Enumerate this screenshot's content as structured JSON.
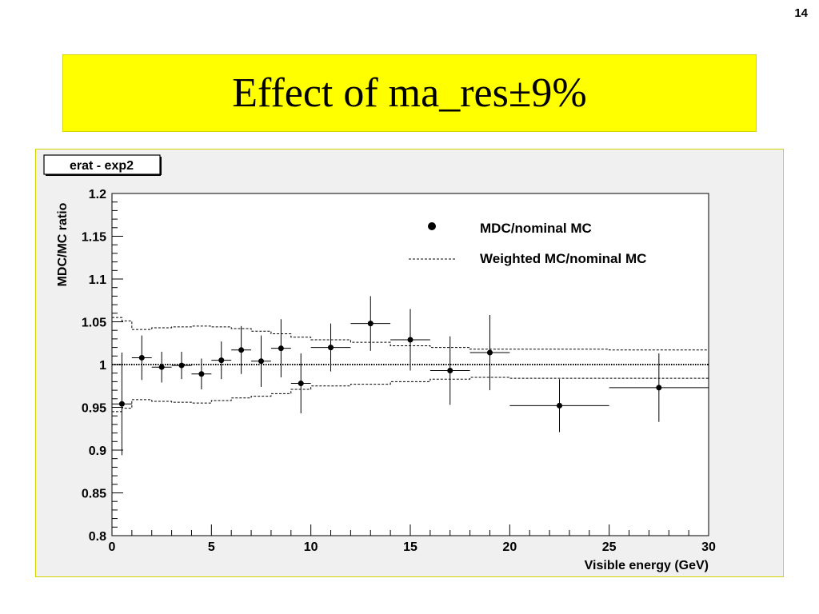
{
  "page": {
    "number": "14"
  },
  "slide": {
    "title": "Effect of ma_res±9%"
  },
  "chart_data": {
    "type": "scatter",
    "stats_box": "erat - exp2",
    "xlabel": "Visible energy (GeV)",
    "ylabel": "MDC/MC ratio",
    "xlim": [
      0,
      30
    ],
    "ylim": [
      0.8,
      1.2
    ],
    "xticks": [
      0,
      5,
      10,
      15,
      20,
      25,
      30
    ],
    "yticks": [
      0.8,
      0.85,
      0.9,
      0.95,
      1,
      1.05,
      1.1,
      1.15,
      1.2
    ],
    "ytick_labels": [
      "0.8",
      "0.85",
      "0.9",
      "0.95",
      "1",
      "1.05",
      "1.1",
      "1.15",
      "1.2"
    ],
    "reference_line": 1,
    "legend_position": "top-right",
    "series": [
      {
        "name": "MDC/nominal MC",
        "style": "points-with-errors",
        "points": [
          {
            "x": 0.5,
            "xlo": 0,
            "xhi": 1,
            "y": 0.954,
            "err": 0.06
          },
          {
            "x": 1.5,
            "xlo": 1,
            "xhi": 2,
            "y": 1.008,
            "err": 0.026
          },
          {
            "x": 2.5,
            "xlo": 2,
            "xhi": 3,
            "y": 0.997,
            "err": 0.018
          },
          {
            "x": 3.5,
            "xlo": 3,
            "xhi": 4,
            "y": 0.999,
            "err": 0.016
          },
          {
            "x": 4.5,
            "xlo": 4,
            "xhi": 5,
            "y": 0.989,
            "err": 0.018
          },
          {
            "x": 5.5,
            "xlo": 5,
            "xhi": 6,
            "y": 1.005,
            "err": 0.022
          },
          {
            "x": 6.5,
            "xlo": 6,
            "xhi": 7,
            "y": 1.017,
            "err": 0.028
          },
          {
            "x": 7.5,
            "xlo": 7,
            "xhi": 8,
            "y": 1.004,
            "err": 0.03
          },
          {
            "x": 8.5,
            "xlo": 8,
            "xhi": 9,
            "y": 1.019,
            "err": 0.034
          },
          {
            "x": 9.5,
            "xlo": 9,
            "xhi": 10,
            "y": 0.978,
            "err": 0.035
          },
          {
            "x": 11,
            "xlo": 10,
            "xhi": 12,
            "y": 1.02,
            "err": 0.028
          },
          {
            "x": 13,
            "xlo": 12,
            "xhi": 14,
            "y": 1.048,
            "err": 0.032
          },
          {
            "x": 15,
            "xlo": 14,
            "xhi": 16,
            "y": 1.029,
            "err": 0.036
          },
          {
            "x": 17,
            "xlo": 16,
            "xhi": 18,
            "y": 0.993,
            "err": 0.04
          },
          {
            "x": 19,
            "xlo": 18,
            "xhi": 20,
            "y": 1.014,
            "err": 0.044
          },
          {
            "x": 22.5,
            "xlo": 20,
            "xhi": 25,
            "y": 0.952,
            "err": 0.031
          },
          {
            "x": 27.5,
            "xlo": 25,
            "xhi": 30,
            "y": 0.973,
            "err": 0.04
          }
        ]
      },
      {
        "name": "Weighted MC/nominal MC",
        "style": "dashed-step-band",
        "bins": [
          0,
          0.5,
          1,
          2,
          3,
          4,
          5,
          6,
          7,
          8,
          9,
          10,
          12,
          14,
          16,
          18,
          20,
          25,
          30
        ],
        "upper": [
          1.055,
          1.051,
          1.041,
          1.043,
          1.044,
          1.045,
          1.044,
          1.042,
          1.039,
          1.036,
          1.032,
          1.029,
          1.026,
          1.022,
          1.02,
          1.018,
          1.018,
          1.017
        ],
        "lower": [
          0.945,
          0.949,
          0.959,
          0.957,
          0.956,
          0.955,
          0.958,
          0.961,
          0.963,
          0.966,
          0.971,
          0.975,
          0.977,
          0.98,
          0.983,
          0.985,
          0.984,
          0.984
        ]
      }
    ]
  }
}
